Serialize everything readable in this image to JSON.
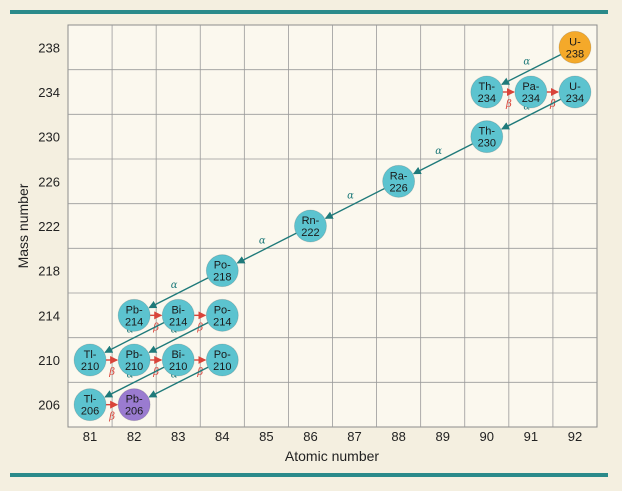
{
  "chart_data": {
    "type": "scatter",
    "title": "",
    "xlabel": "Atomic number",
    "ylabel": "Mass number",
    "xlim": [
      80.5,
      92.5
    ],
    "ylim": [
      204,
      240
    ],
    "x_ticks": [
      "81",
      "82",
      "83",
      "84",
      "85",
      "86",
      "87",
      "88",
      "89",
      "90",
      "91",
      "92"
    ],
    "y_ticks": [
      "206",
      "210",
      "214",
      "218",
      "222",
      "226",
      "230",
      "234",
      "238"
    ],
    "grid": true,
    "colors": {
      "start": "#f4a92a",
      "end": "#9a7bd0",
      "normal": "#5cc3cf",
      "alpha_arrow": "#1f7a7a",
      "beta_arrow": "#d9443a",
      "frame": "#2a8a8a"
    },
    "nuclides": [
      {
        "symbol": "U",
        "mass": "238",
        "z": 92,
        "a": 238,
        "kind": "start"
      },
      {
        "symbol": "Th",
        "mass": "234",
        "z": 90,
        "a": 234,
        "kind": "normal"
      },
      {
        "symbol": "Pa",
        "mass": "234",
        "z": 91,
        "a": 234,
        "kind": "normal"
      },
      {
        "symbol": "U",
        "mass": "234",
        "z": 92,
        "a": 234,
        "kind": "normal"
      },
      {
        "symbol": "Th",
        "mass": "230",
        "z": 90,
        "a": 230,
        "kind": "normal"
      },
      {
        "symbol": "Ra",
        "mass": "226",
        "z": 88,
        "a": 226,
        "kind": "normal"
      },
      {
        "symbol": "Rn",
        "mass": "222",
        "z": 86,
        "a": 222,
        "kind": "normal"
      },
      {
        "symbol": "Po",
        "mass": "218",
        "z": 84,
        "a": 218,
        "kind": "normal"
      },
      {
        "symbol": "Pb",
        "mass": "214",
        "z": 82,
        "a": 214,
        "kind": "normal"
      },
      {
        "symbol": "Bi",
        "mass": "214",
        "z": 83,
        "a": 214,
        "kind": "normal"
      },
      {
        "symbol": "Po",
        "mass": "214",
        "z": 84,
        "a": 214,
        "kind": "normal"
      },
      {
        "symbol": "Tl",
        "mass": "210",
        "z": 81,
        "a": 210,
        "kind": "normal"
      },
      {
        "symbol": "Pb",
        "mass": "210",
        "z": 82,
        "a": 210,
        "kind": "normal"
      },
      {
        "symbol": "Bi",
        "mass": "210",
        "z": 83,
        "a": 210,
        "kind": "normal"
      },
      {
        "symbol": "Po",
        "mass": "210",
        "z": 84,
        "a": 210,
        "kind": "normal"
      },
      {
        "symbol": "Tl",
        "mass": "206",
        "z": 81,
        "a": 206,
        "kind": "normal"
      },
      {
        "symbol": "Pb",
        "mass": "206",
        "z": 82,
        "a": 206,
        "kind": "end"
      }
    ],
    "decays": [
      {
        "type": "alpha",
        "from": [
          92,
          238
        ],
        "to": [
          90,
          234
        ]
      },
      {
        "type": "beta",
        "from": [
          90,
          234
        ],
        "to": [
          91,
          234
        ]
      },
      {
        "type": "beta",
        "from": [
          91,
          234
        ],
        "to": [
          92,
          234
        ]
      },
      {
        "type": "alpha",
        "from": [
          92,
          234
        ],
        "to": [
          90,
          230
        ]
      },
      {
        "type": "alpha",
        "from": [
          90,
          230
        ],
        "to": [
          88,
          226
        ]
      },
      {
        "type": "alpha",
        "from": [
          88,
          226
        ],
        "to": [
          86,
          222
        ]
      },
      {
        "type": "alpha",
        "from": [
          86,
          222
        ],
        "to": [
          84,
          218
        ]
      },
      {
        "type": "alpha",
        "from": [
          84,
          218
        ],
        "to": [
          82,
          214
        ]
      },
      {
        "type": "beta",
        "from": [
          82,
          214
        ],
        "to": [
          83,
          214
        ]
      },
      {
        "type": "beta",
        "from": [
          83,
          214
        ],
        "to": [
          84,
          214
        ]
      },
      {
        "type": "alpha",
        "from": [
          84,
          214
        ],
        "to": [
          82,
          210
        ]
      },
      {
        "type": "alpha",
        "from": [
          83,
          214
        ],
        "to": [
          81,
          210
        ]
      },
      {
        "type": "beta",
        "from": [
          81,
          210
        ],
        "to": [
          82,
          210
        ]
      },
      {
        "type": "beta",
        "from": [
          82,
          210
        ],
        "to": [
          83,
          210
        ]
      },
      {
        "type": "beta",
        "from": [
          83,
          210
        ],
        "to": [
          84,
          210
        ]
      },
      {
        "type": "alpha",
        "from": [
          83,
          210
        ],
        "to": [
          81,
          206
        ]
      },
      {
        "type": "alpha",
        "from": [
          84,
          210
        ],
        "to": [
          82,
          206
        ]
      },
      {
        "type": "beta",
        "from": [
          81,
          206
        ],
        "to": [
          82,
          206
        ]
      }
    ],
    "alpha_symbol": "α",
    "beta_symbol": "β"
  }
}
